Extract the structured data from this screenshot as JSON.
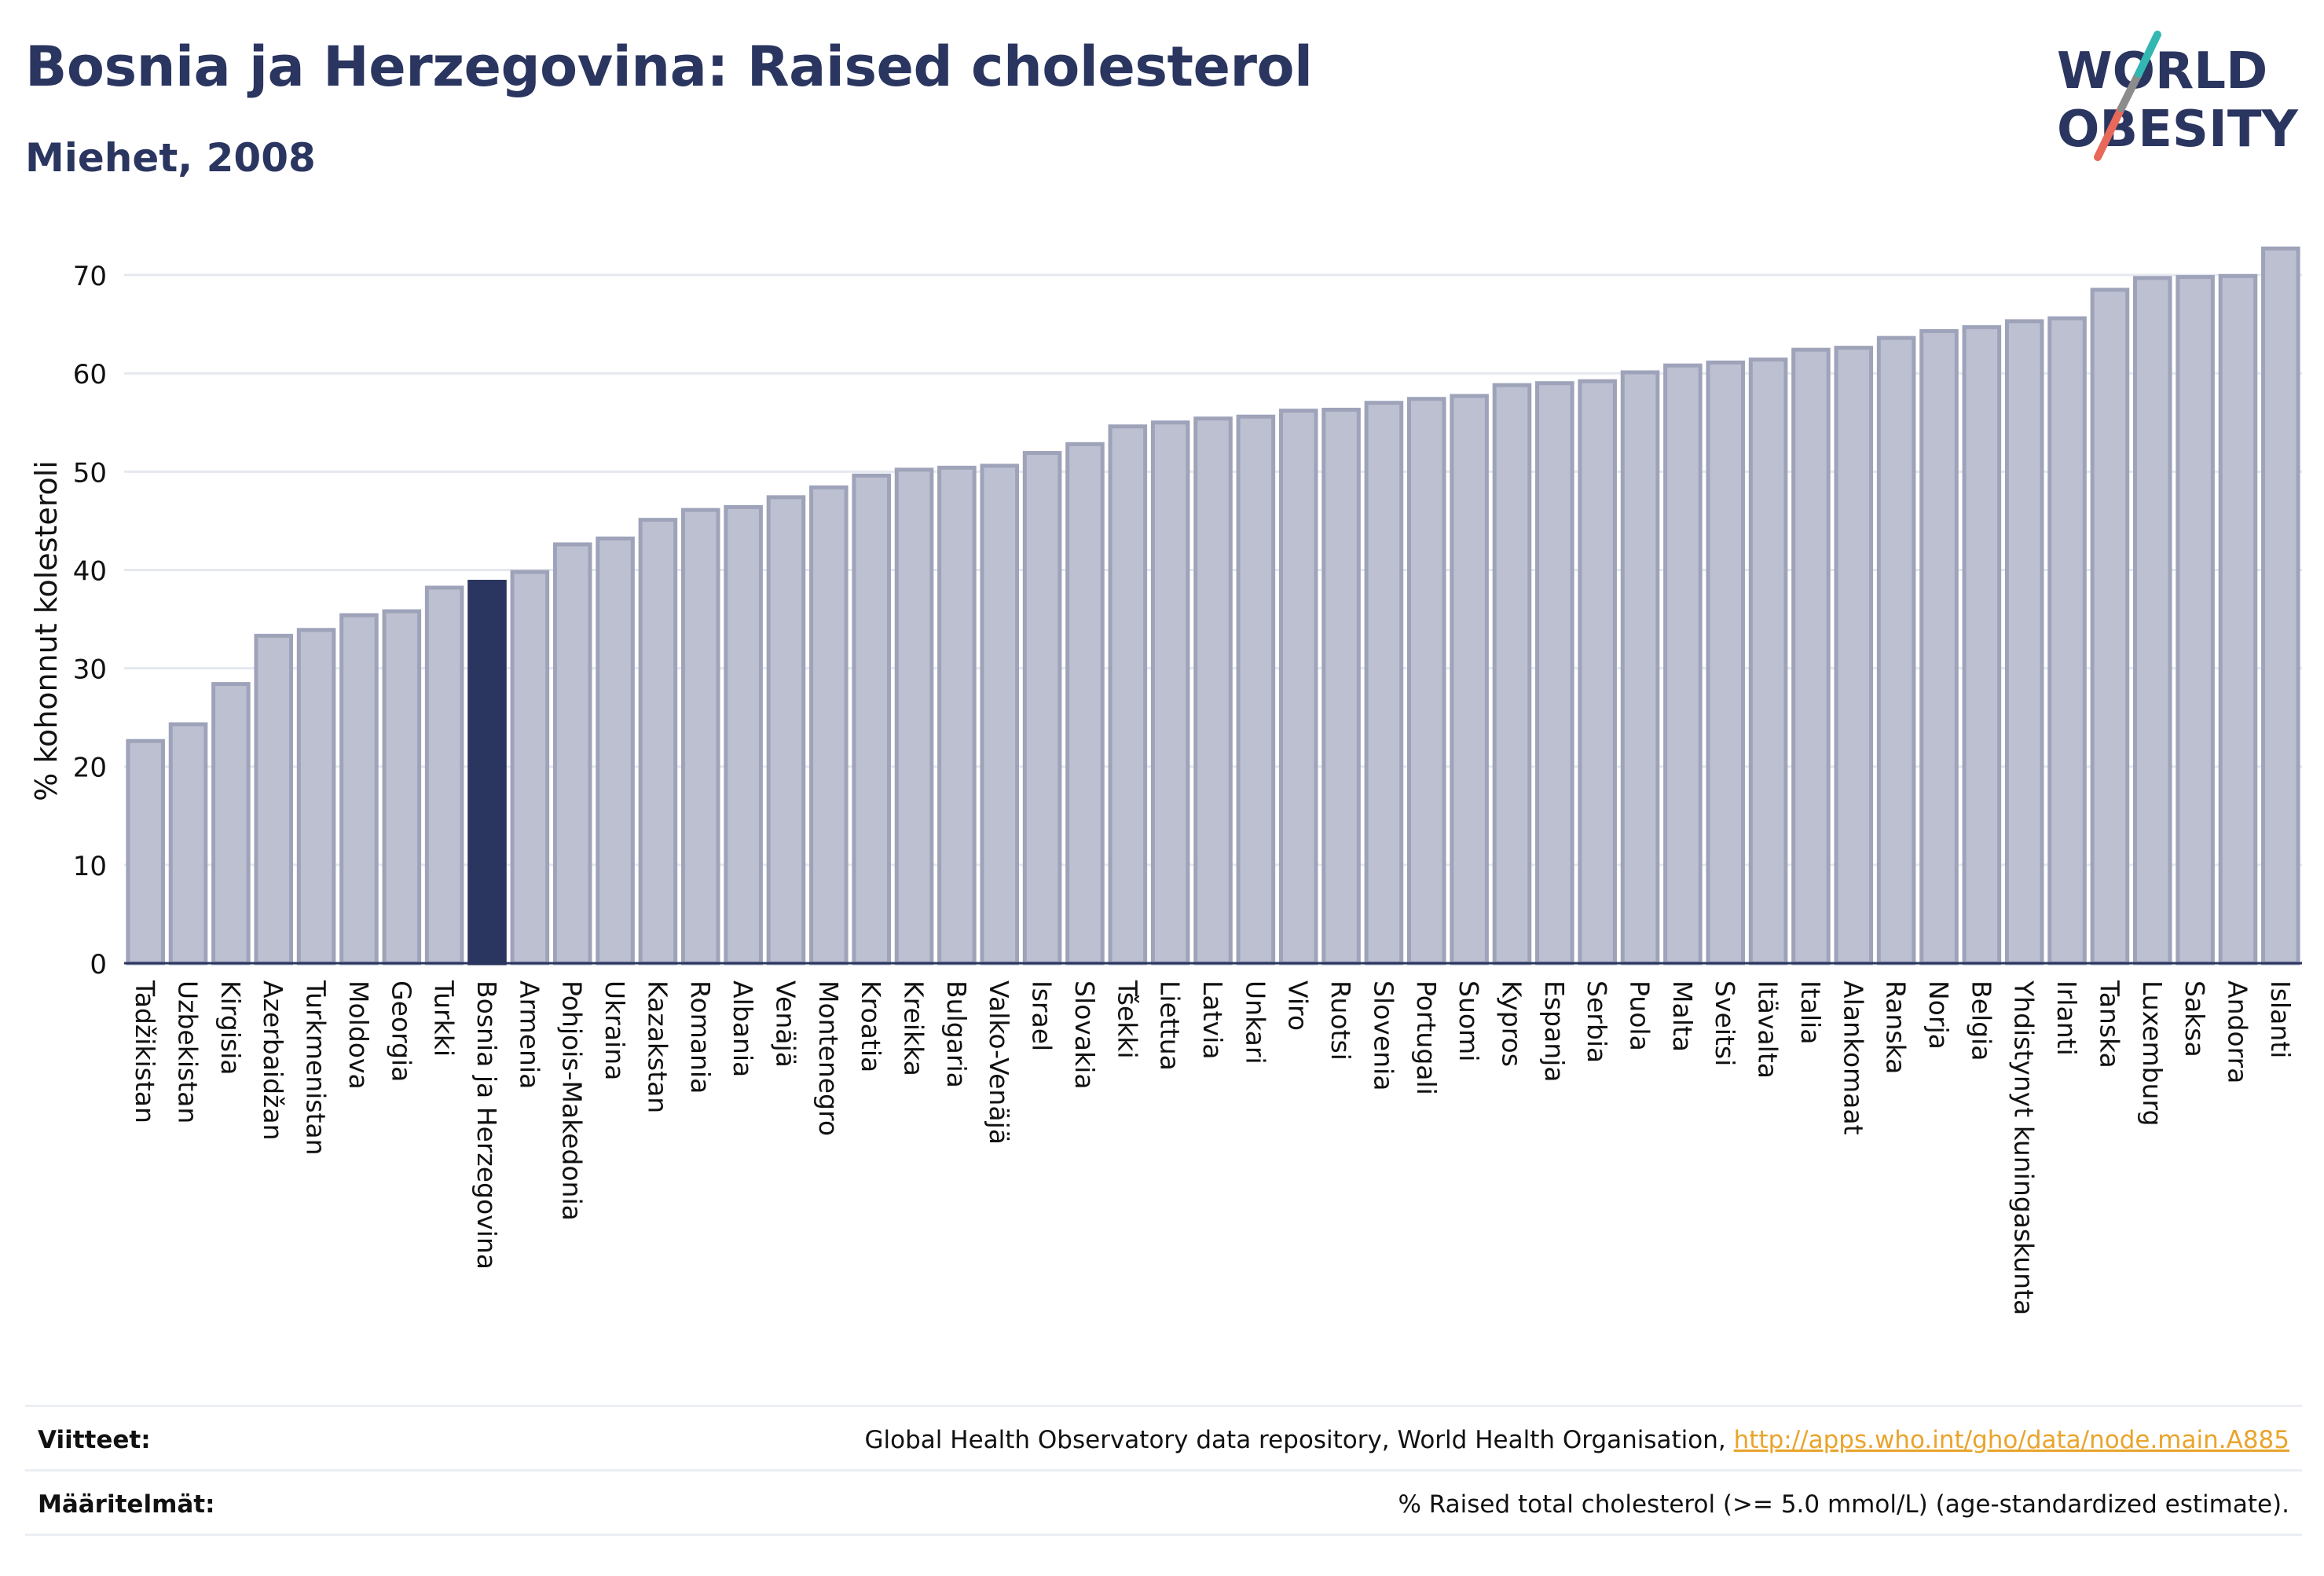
{
  "header": {
    "title": "Bosnia ja Herzegovina: Raised cholesterol",
    "subtitle": "Miehet, 2008"
  },
  "logo": {
    "line1": "WORLD",
    "line2": "OBESITY",
    "accent_teal": "#33b7b2",
    "accent_coral": "#e8695a"
  },
  "colors": {
    "bar_default": "#bcc0d0",
    "bar_default_stroke": "#9ea3ba",
    "bar_highlight": "#2a3560",
    "text": "#2a3560",
    "grid": "#e6e8f0"
  },
  "chart_data": {
    "type": "bar",
    "ylabel": "% kohonnut kolesteroli",
    "ylim": [
      0,
      74
    ],
    "yticks": [
      0,
      10,
      20,
      30,
      40,
      50,
      60,
      70
    ],
    "grid": true,
    "highlight": "Bosnia ja Herzegovina",
    "categories": [
      "Tadžikistan",
      "Uzbekistan",
      "Kirgisia",
      "Azerbaidžan",
      "Turkmenistan",
      "Moldova",
      "Georgia",
      "Turkki",
      "Bosnia ja Herzegovina",
      "Armenia",
      "Pohjois-Makedonia",
      "Ukraina",
      "Kazakstan",
      "Romania",
      "Albania",
      "Venäjä",
      "Montenegro",
      "Kroatia",
      "Kreikka",
      "Bulgaria",
      "Valko-Venäjä",
      "Israel",
      "Slovakia",
      "Tšekki",
      "Liettua",
      "Latvia",
      "Unkari",
      "Viro",
      "Ruotsi",
      "Slovenia",
      "Portugali",
      "Suomi",
      "Kypros",
      "Espanja",
      "Serbia",
      "Puola",
      "Malta",
      "Sveitsi",
      "Itävalta",
      "Italia",
      "Alankomaat",
      "Ranska",
      "Norja",
      "Belgia",
      "Yhdistynyt kuningaskunta",
      "Irlanti",
      "Tanska",
      "Luxemburg",
      "Saksa",
      "Andorra",
      "Islanti"
    ],
    "values": [
      22.6,
      24.3,
      28.4,
      33.3,
      33.9,
      35.4,
      35.8,
      38.2,
      38.8,
      39.8,
      42.6,
      43.2,
      45.1,
      46.1,
      46.4,
      47.4,
      48.4,
      49.6,
      50.2,
      50.4,
      50.6,
      51.9,
      52.8,
      54.6,
      55.0,
      55.4,
      55.6,
      56.2,
      56.3,
      57.0,
      57.4,
      57.7,
      58.8,
      59.0,
      59.2,
      60.1,
      60.8,
      61.1,
      61.4,
      62.4,
      62.6,
      63.6,
      64.3,
      64.7,
      65.3,
      65.6,
      68.5,
      69.7,
      69.8,
      69.9,
      72.7
    ]
  },
  "footer": {
    "sources_label": "Viitteet:",
    "sources_text": "Global Health Observatory data repository, World Health Organisation, ",
    "sources_link": "http://apps.who.int/gho/data/node.main.A885",
    "definitions_label": "Määritelmät:",
    "definitions_text": "% Raised total cholesterol (>= 5.0 mmol/L) (age-standardized estimate)."
  }
}
